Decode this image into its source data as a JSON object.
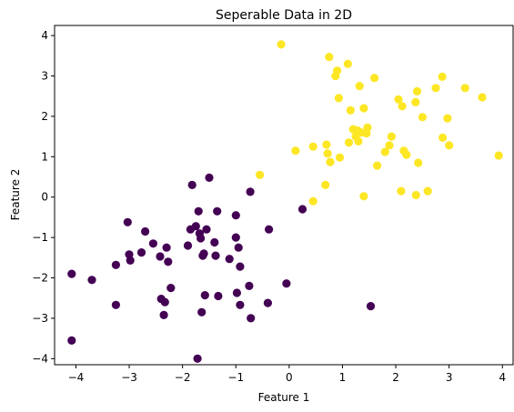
{
  "chart_data": {
    "type": "scatter",
    "title": "Seperable Data in 2D",
    "xlabel": "Feature 1",
    "ylabel": "Feature 2",
    "xlim": [
      -4.4,
      4.2
    ],
    "ylim": [
      -4.15,
      4.25
    ],
    "xticks": [
      -4,
      -3,
      -2,
      -1,
      0,
      1,
      2,
      3,
      4
    ],
    "yticks": [
      -4,
      -3,
      -2,
      -1,
      0,
      1,
      2,
      3,
      4
    ],
    "grid": false,
    "series": [
      {
        "color": "#440154",
        "points": [
          [
            -4.08,
            -1.9
          ],
          [
            -4.08,
            -3.55
          ],
          [
            -3.7,
            -2.05
          ],
          [
            -3.25,
            -1.68
          ],
          [
            -3.25,
            -2.67
          ],
          [
            -3.03,
            -0.62
          ],
          [
            -3.0,
            -1.42
          ],
          [
            -2.98,
            -1.57
          ],
          [
            -2.77,
            -1.37
          ],
          [
            -2.7,
            -0.85
          ],
          [
            -2.55,
            -1.15
          ],
          [
            -2.42,
            -1.47
          ],
          [
            -2.4,
            -2.52
          ],
          [
            -2.35,
            -2.92
          ],
          [
            -2.33,
            -2.6
          ],
          [
            -2.3,
            -1.25
          ],
          [
            -2.27,
            -1.6
          ],
          [
            -2.22,
            -2.25
          ],
          [
            -1.9,
            -1.2
          ],
          [
            -1.85,
            -0.8
          ],
          [
            -1.82,
            0.3
          ],
          [
            -1.75,
            -0.72
          ],
          [
            -1.72,
            -4.0
          ],
          [
            -1.7,
            -0.35
          ],
          [
            -1.68,
            -0.9
          ],
          [
            -1.66,
            -1.02
          ],
          [
            -1.64,
            -2.85
          ],
          [
            -1.62,
            -1.45
          ],
          [
            -1.6,
            -1.4
          ],
          [
            -1.58,
            -2.43
          ],
          [
            -1.55,
            -0.8
          ],
          [
            -1.5,
            0.48
          ],
          [
            -1.4,
            -1.12
          ],
          [
            -1.38,
            -1.45
          ],
          [
            -1.35,
            -0.35
          ],
          [
            -1.33,
            -2.45
          ],
          [
            -1.12,
            -1.53
          ],
          [
            -1.0,
            -0.45
          ],
          [
            -1.0,
            -1.0
          ],
          [
            -0.98,
            -2.37
          ],
          [
            -0.95,
            -1.25
          ],
          [
            -0.92,
            -1.72
          ],
          [
            -0.92,
            -2.67
          ],
          [
            -0.75,
            -2.2
          ],
          [
            -0.73,
            0.13
          ],
          [
            -0.72,
            -3.0
          ],
          [
            -0.4,
            -2.62
          ],
          [
            -0.38,
            -0.8
          ],
          [
            -0.05,
            -2.14
          ],
          [
            0.25,
            -0.3
          ],
          [
            1.53,
            -2.7
          ]
        ]
      },
      {
        "color": "#fde725",
        "points": [
          [
            -0.15,
            3.78
          ],
          [
            -0.55,
            0.55
          ],
          [
            0.12,
            1.15
          ],
          [
            0.45,
            1.25
          ],
          [
            0.45,
            -0.1
          ],
          [
            0.68,
            0.3
          ],
          [
            0.7,
            1.3
          ],
          [
            0.72,
            1.08
          ],
          [
            0.75,
            3.47
          ],
          [
            0.77,
            0.87
          ],
          [
            0.87,
            3.0
          ],
          [
            0.9,
            3.13
          ],
          [
            0.93,
            2.45
          ],
          [
            0.95,
            0.98
          ],
          [
            1.1,
            3.3
          ],
          [
            1.12,
            1.35
          ],
          [
            1.15,
            2.15
          ],
          [
            1.2,
            1.68
          ],
          [
            1.25,
            1.5
          ],
          [
            1.28,
            1.65
          ],
          [
            1.3,
            1.38
          ],
          [
            1.32,
            2.75
          ],
          [
            1.35,
            1.6
          ],
          [
            1.4,
            0.02
          ],
          [
            1.4,
            2.2
          ],
          [
            1.45,
            1.58
          ],
          [
            1.47,
            1.72
          ],
          [
            1.6,
            2.95
          ],
          [
            1.65,
            0.78
          ],
          [
            1.8,
            1.12
          ],
          [
            1.88,
            1.28
          ],
          [
            1.92,
            1.5
          ],
          [
            2.05,
            2.42
          ],
          [
            2.1,
            0.15
          ],
          [
            2.12,
            2.25
          ],
          [
            2.15,
            1.15
          ],
          [
            2.2,
            1.05
          ],
          [
            2.37,
            2.35
          ],
          [
            2.38,
            0.05
          ],
          [
            2.4,
            2.62
          ],
          [
            2.42,
            0.85
          ],
          [
            2.5,
            1.98
          ],
          [
            2.6,
            0.15
          ],
          [
            2.75,
            2.7
          ],
          [
            2.87,
            2.98
          ],
          [
            2.88,
            1.47
          ],
          [
            2.97,
            1.95
          ],
          [
            3.0,
            1.28
          ],
          [
            3.3,
            2.7
          ],
          [
            3.62,
            2.47
          ],
          [
            3.93,
            1.03
          ]
        ]
      }
    ]
  }
}
